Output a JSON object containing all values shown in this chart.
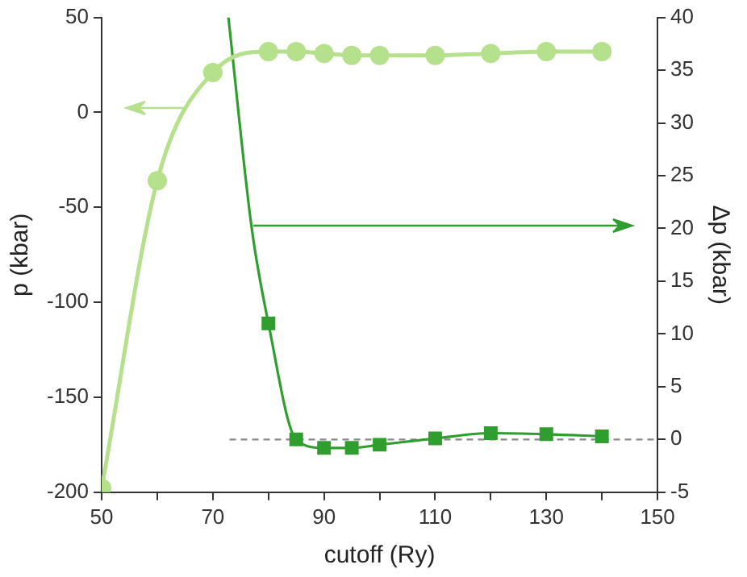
{
  "chart_data": {
    "type": "line",
    "xlabel": "cutoff (Ry)",
    "ylabel": "p (kbar)",
    "y2label": "Δp (kbar)",
    "xlim": [
      50,
      150
    ],
    "xticks": [
      50,
      {
        "value": 60,
        "label": null
      },
      70,
      {
        "value": 80,
        "label": null
      },
      90,
      {
        "value": 100,
        "label": null
      },
      110,
      {
        "value": 120,
        "label": null
      },
      130,
      {
        "value": 140,
        "label": null
      },
      150
    ],
    "ylim": [
      -200,
      50
    ],
    "yticks": [
      -200,
      -150,
      -100,
      -50,
      0,
      50
    ],
    "y2lim": [
      -5,
      40
    ],
    "y2ticks": [
      -5,
      0,
      5,
      10,
      15,
      20,
      25,
      30,
      35,
      40
    ],
    "grid": false,
    "legend": false,
    "series": [
      {
        "marker": "circle",
        "color": "#b5e08c",
        "x": [
          50,
          60,
          70,
          80,
          85,
          90,
          95,
          100,
          110,
          120,
          130,
          140
        ],
        "values": [
          -198,
          -36,
          21,
          32,
          32,
          31,
          30,
          30,
          30,
          31,
          32,
          32
        ]
      },
      {
        "marker": "none",
        "axis": "y2",
        "color": "#2f9e2f",
        "x": [
          72.8,
          77,
          80,
          85,
          90,
          95,
          100,
          110,
          120,
          130,
          140
        ],
        "values": [
          40,
          20,
          11,
          0,
          -0.8,
          -0.8,
          -0.5,
          0.1,
          0.6,
          0.5,
          0.3
        ]
      },
      {
        "type": "scatter",
        "marker": "square",
        "axis": "y2",
        "color": "#2f9e2f",
        "x": [
          80,
          85,
          90,
          95,
          100,
          110,
          120,
          130,
          140
        ],
        "values": [
          11,
          0,
          -0.8,
          -0.8,
          -0.5,
          0.1,
          0.6,
          0.5,
          0.3
        ]
      }
    ],
    "ref_lines": [
      {
        "axis": "y2",
        "value": 0,
        "color": "#888888",
        "line_style": "dashed"
      }
    ]
  }
}
